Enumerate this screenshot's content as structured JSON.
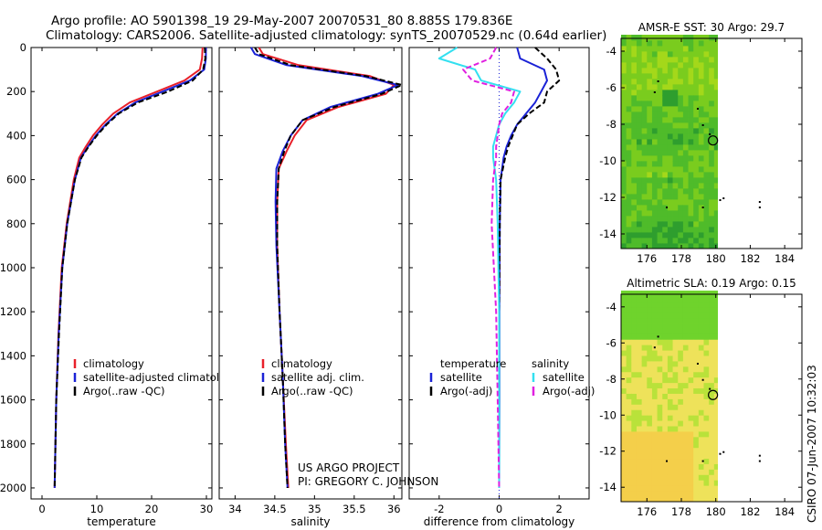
{
  "header": {
    "title_line1": "Argo profile: AO 5901398_19 29-May-2007 20070531_80 8.885S 179.836E",
    "title_line2": "Climatology: CARS2006. Satellite-adjusted climatology: synTS_20070529.nc (0.64d earlier)"
  },
  "footer": {
    "project": "US ARGO PROJECT",
    "pi": "PI: GREGORY C. JOHNSON",
    "stamp": "CSIRO 07-Jun-2007 10:32:03"
  },
  "colors": {
    "climatology": "#e8202a",
    "satellite": "#1a22d6",
    "argo": "#000000",
    "salinity_sat": "#33e0f0",
    "salinity_argo": "#e020e0"
  },
  "chart_data": [
    {
      "id": "temperature",
      "type": "line",
      "xlabel": "temperature",
      "ylabel": "",
      "xlim": [
        -2,
        31
      ],
      "ylim": [
        2050,
        0
      ],
      "xticks": [
        0,
        10,
        20,
        30
      ],
      "yticks": [
        0,
        200,
        400,
        600,
        800,
        1000,
        1200,
        1400,
        1600,
        1800,
        2000
      ],
      "legend": [
        "climatology",
        "satellite-adjusted climatology",
        "Argo(..raw -QC)"
      ],
      "series": [
        {
          "name": "climatology",
          "color": "#e8202a",
          "x": [
            29.3,
            29.2,
            28.8,
            26.0,
            21.0,
            16.0,
            13.0,
            11.0,
            9.3,
            8.0,
            6.8,
            5.8,
            4.5,
            3.6,
            3.0,
            2.6,
            2.3
          ],
          "y": [
            0,
            50,
            100,
            150,
            200,
            250,
            300,
            350,
            400,
            450,
            500,
            600,
            800,
            1000,
            1300,
            1600,
            2000
          ]
        },
        {
          "name": "satellite-adjusted climatology",
          "color": "#1a22d6",
          "x": [
            29.9,
            29.9,
            29.6,
            27.0,
            22.0,
            17.0,
            13.8,
            11.6,
            9.8,
            8.4,
            7.1,
            6.0,
            4.6,
            3.7,
            3.05,
            2.6,
            2.3
          ],
          "y": [
            0,
            50,
            100,
            150,
            200,
            250,
            300,
            350,
            400,
            450,
            500,
            600,
            800,
            1000,
            1300,
            1600,
            2000
          ]
        },
        {
          "name": "Argo(..raw -QC)",
          "color": "#000000",
          "x": [
            29.7,
            29.8,
            29.4,
            27.5,
            23.0,
            17.5,
            14.0,
            11.8,
            10.0,
            8.5,
            7.2,
            6.0,
            4.6,
            3.7,
            3.1,
            2.6,
            2.3
          ],
          "y": [
            0,
            50,
            100,
            150,
            200,
            250,
            300,
            350,
            400,
            450,
            500,
            600,
            800,
            1000,
            1300,
            1600,
            2000
          ]
        }
      ]
    },
    {
      "id": "salinity",
      "type": "line",
      "xlabel": "salinity",
      "ylabel": "",
      "xlim": [
        33.8,
        36.1
      ],
      "ylim": [
        2050,
        0
      ],
      "xticks": [
        34,
        34.5,
        35,
        35.5,
        36
      ],
      "yticks": [
        0,
        200,
        400,
        600,
        800,
        1000,
        1200,
        1400,
        1600,
        1800,
        2000
      ],
      "legend": [
        "climatology",
        "satellite adj. clim.",
        "Argo(..raw -QC)"
      ],
      "series": [
        {
          "name": "climatology",
          "color": "#e8202a",
          "x": [
            34.3,
            34.35,
            34.8,
            35.7,
            36.0,
            35.9,
            35.3,
            34.9,
            34.75,
            34.65,
            34.55,
            34.53,
            34.53,
            34.56,
            34.6,
            34.64,
            34.67
          ],
          "y": [
            0,
            30,
            80,
            130,
            170,
            210,
            270,
            330,
            400,
            470,
            550,
            700,
            900,
            1200,
            1500,
            1800,
            2000
          ]
        },
        {
          "name": "satellite adj. clim.",
          "color": "#1a22d6",
          "x": [
            34.2,
            34.25,
            34.65,
            35.6,
            36.05,
            35.8,
            35.2,
            34.85,
            34.7,
            34.6,
            34.52,
            34.51,
            34.52,
            34.56,
            34.6,
            34.63,
            34.66
          ],
          "y": [
            0,
            30,
            80,
            130,
            170,
            210,
            270,
            330,
            400,
            470,
            550,
            700,
            900,
            1200,
            1500,
            1800,
            2000
          ]
        },
        {
          "name": "Argo(..raw -QC)",
          "color": "#000000",
          "x": [
            34.25,
            34.3,
            34.7,
            35.65,
            36.1,
            35.85,
            35.25,
            34.85,
            34.7,
            34.62,
            34.55,
            34.53,
            34.53,
            34.56,
            34.6,
            34.63,
            34.66
          ],
          "y": [
            0,
            30,
            80,
            130,
            170,
            210,
            270,
            330,
            400,
            470,
            550,
            700,
            900,
            1200,
            1500,
            1800,
            2000
          ]
        }
      ]
    },
    {
      "id": "difference",
      "type": "line",
      "xlabel": "difference from climatology",
      "ylabel": "",
      "xlim": [
        -3,
        3
      ],
      "ylim": [
        2050,
        0
      ],
      "xticks": [
        -2,
        0,
        2
      ],
      "yticks": [
        0,
        200,
        400,
        600,
        800,
        1000,
        1200,
        1400,
        1600,
        1800,
        2000
      ],
      "legend_headers": [
        "temperature",
        "salinity"
      ],
      "legend": [
        "satellite",
        "Argo(-adj)",
        "satellite",
        "Argo(-adj)"
      ],
      "series": [
        {
          "name": "temperature satellite",
          "color": "#1a22d6",
          "dash": false,
          "x": [
            0.6,
            0.7,
            1.5,
            1.6,
            1.4,
            1.2,
            0.9,
            0.6,
            0.4,
            0.25,
            0.15,
            0.05,
            0.02,
            0.01,
            0.01,
            0.0
          ],
          "y": [
            0,
            50,
            100,
            150,
            200,
            250,
            300,
            350,
            400,
            450,
            500,
            600,
            800,
            1200,
            1600,
            2000
          ]
        },
        {
          "name": "temperature Argo(-adj)",
          "color": "#000000",
          "dash": true,
          "x": [
            1.2,
            1.6,
            1.9,
            2.0,
            1.6,
            1.5,
            1.0,
            0.6,
            0.45,
            0.3,
            0.2,
            0.05,
            0.02,
            0.0,
            0.0,
            0.0
          ],
          "y": [
            0,
            50,
            100,
            150,
            200,
            250,
            300,
            350,
            400,
            450,
            500,
            600,
            800,
            1200,
            1600,
            2000
          ]
        },
        {
          "name": "salinity satellite",
          "color": "#33e0f0",
          "dash": false,
          "x": [
            -1.4,
            -2.0,
            -0.8,
            -0.6,
            0.7,
            0.5,
            0.2,
            0.0,
            -0.1,
            -0.2,
            -0.2,
            -0.1,
            -0.05,
            0.0,
            0.0,
            0.0
          ],
          "y": [
            0,
            50,
            100,
            150,
            200,
            250,
            300,
            350,
            400,
            450,
            500,
            600,
            800,
            1200,
            1600,
            2000
          ]
        },
        {
          "name": "salinity Argo(-adj)",
          "color": "#e020e0",
          "dash": true,
          "x": [
            -0.1,
            -0.3,
            -1.2,
            -0.9,
            0.5,
            0.4,
            0.1,
            0.0,
            -0.05,
            -0.1,
            -0.1,
            -0.2,
            -0.25,
            -0.1,
            -0.05,
            0.0
          ],
          "y": [
            0,
            50,
            100,
            150,
            200,
            250,
            300,
            350,
            400,
            450,
            500,
            600,
            800,
            1200,
            1600,
            2000
          ]
        }
      ]
    },
    {
      "id": "sst_map",
      "type": "heatmap",
      "title": "AMSR-E SST: 30 Argo: 29.7",
      "xlim": [
        174.5,
        185
      ],
      "ylim": [
        -14.8,
        -3.3
      ],
      "xticks": [
        176,
        178,
        180,
        182,
        184
      ],
      "yticks": [
        -4,
        -6,
        -8,
        -10,
        -12,
        -14
      ],
      "data_extent_lon": [
        174.5,
        180.1
      ],
      "float_position": {
        "lon": 179.836,
        "lat": -8.885
      },
      "palette": [
        "#2e9e2e",
        "#4fbb2a",
        "#7acc1e",
        "#a4d81a"
      ]
    },
    {
      "id": "sla_map",
      "type": "heatmap",
      "title": "Altimetric SLA: 0.19 Argo: 0.15",
      "xlim": [
        174.5,
        185
      ],
      "ylim": [
        -14.8,
        -3.3
      ],
      "xticks": [
        176,
        178,
        180,
        182,
        184
      ],
      "yticks": [
        -4,
        -6,
        -8,
        -10,
        -12,
        -14
      ],
      "data_extent_lon": [
        174.5,
        180.1
      ],
      "float_position": {
        "lon": 179.836,
        "lat": -8.885
      },
      "palette": [
        "#6fd32c",
        "#b9e23a",
        "#eee25a",
        "#f4cf4a"
      ]
    }
  ]
}
